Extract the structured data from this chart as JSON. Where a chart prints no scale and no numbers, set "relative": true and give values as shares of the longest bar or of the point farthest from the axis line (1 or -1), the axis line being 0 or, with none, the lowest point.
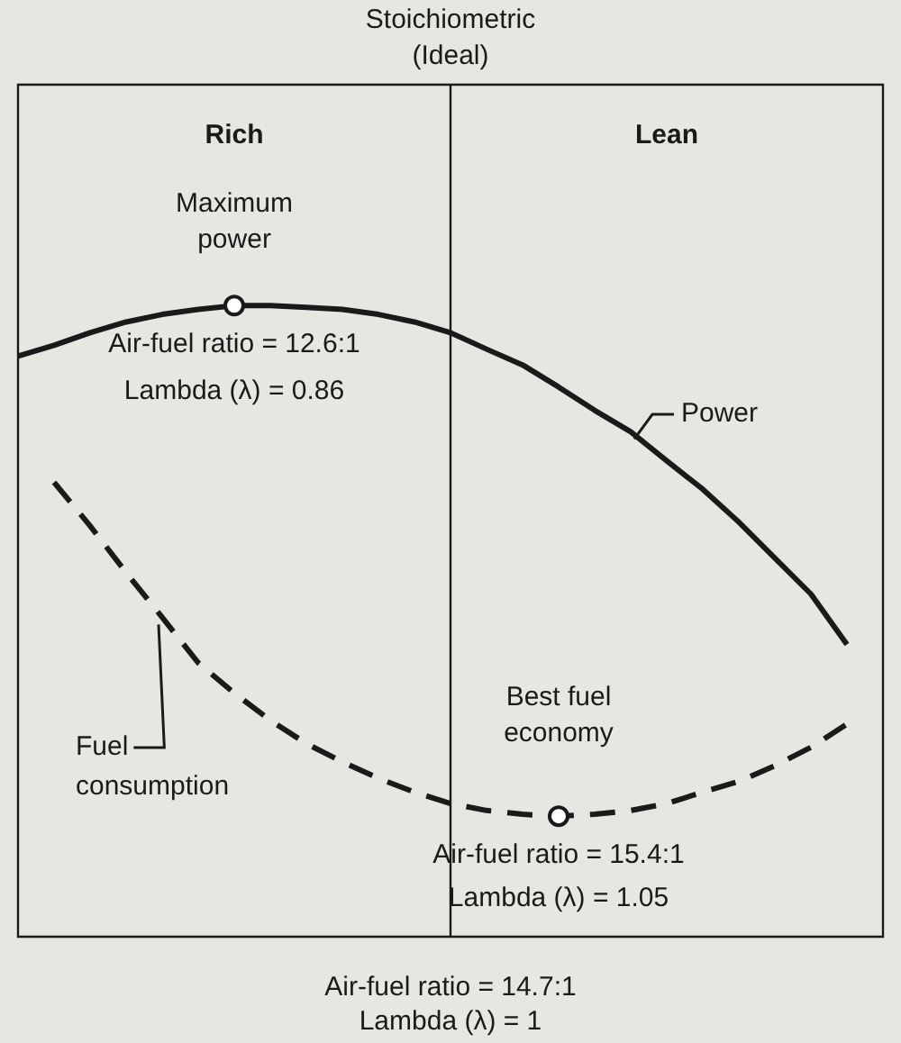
{
  "chart_data": {
    "type": "line",
    "relative": true,
    "tick_labels": false,
    "legend": "right",
    "categories": [
      null,
      null,
      null,
      null,
      null,
      null,
      null,
      null,
      null,
      null,
      null,
      null,
      null,
      null,
      null,
      null,
      null,
      null,
      null,
      null,
      null,
      null,
      null,
      null,
      null
    ],
    "series": [
      {
        "name": "Power",
        "color": "#1a1a1a",
        "line_style": "solid",
        "marker": "none",
        "values": [
          0.92,
          0.937,
          0.957,
          0.974,
          0.986,
          0.994,
          1.0,
          1.0,
          0.997,
          0.994,
          0.986,
          0.974,
          0.957,
          0.931,
          0.906,
          0.871,
          0.834,
          0.8,
          0.754,
          0.709,
          0.657,
          0.6,
          0.543,
          0.463,
          null
        ]
      },
      {
        "name": "Fuel consumption",
        "color": "#1a1a1a",
        "line_style": "dashed",
        "marker": "none",
        "values": [
          null,
          0.72,
          0.651,
          0.577,
          0.506,
          0.434,
          0.386,
          0.343,
          0.306,
          0.277,
          0.251,
          0.229,
          0.211,
          0.2,
          0.194,
          0.191,
          0.194,
          0.2,
          0.211,
          0.229,
          0.246,
          0.271,
          0.3,
          0.337,
          null
        ]
      }
    ],
    "annotations": [
      "Stoichiometric (Ideal)",
      "Rich",
      "Lean",
      "Maximum power",
      "Air-fuel ratio = 12.6:1",
      "Lambda (λ) = 0.86",
      "Best fuel economy",
      "Air-fuel ratio = 15.4:1",
      "Lambda (λ) = 1.05",
      "Air-fuel ratio = 14.7:1",
      "Lambda (λ) = 1"
    ]
  }
}
